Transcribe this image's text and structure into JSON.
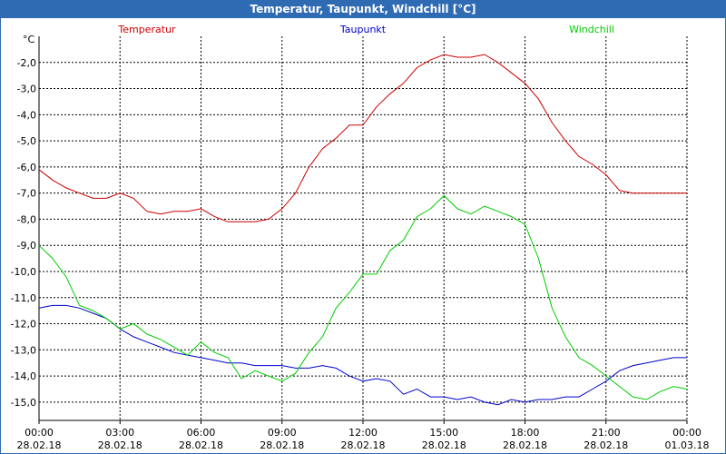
{
  "window": {
    "title": "Temperatur, Taupunkt, Windchill [°C]"
  },
  "chart_data": {
    "type": "line",
    "title": "Temperatur, Taupunkt, Windchill [°C]",
    "ylabel": "°C",
    "ylim": [
      -15.7,
      -1.0
    ],
    "yticks": [
      -2,
      -3,
      -4,
      -5,
      -6,
      -7,
      -8,
      -9,
      -10,
      -11,
      -12,
      -13,
      -14,
      -15
    ],
    "ytick_labels": [
      "-2,0",
      "-3,0",
      "-4,0",
      "-5,0",
      "-6,0",
      "-7,0",
      "-8,0",
      "-9,0",
      "-10,0",
      "-11,0",
      "-12,0",
      "-13,0",
      "-14,0",
      "-15,0"
    ],
    "xlim": [
      0,
      24
    ],
    "xticks": [
      {
        "h": 0,
        "time": "00:00",
        "date": "28.02.18"
      },
      {
        "h": 3,
        "time": "03:00",
        "date": "28.02.18"
      },
      {
        "h": 6,
        "time": "06:00",
        "date": "28.02.18"
      },
      {
        "h": 9,
        "time": "09:00",
        "date": "28.02.18"
      },
      {
        "h": 12,
        "time": "12:00",
        "date": "28.02.18"
      },
      {
        "h": 15,
        "time": "15:00",
        "date": "28.02.18"
      },
      {
        "h": 18,
        "time": "18:00",
        "date": "28.02.18"
      },
      {
        "h": 21,
        "time": "21:00",
        "date": "28.02.18"
      },
      {
        "h": 24,
        "time": "00:00",
        "date": "01.03.18"
      }
    ],
    "grid": true,
    "series": [
      {
        "name": "Temperatur",
        "color": "#cc0000",
        "x": [
          0,
          0.5,
          1,
          1.5,
          2,
          2.5,
          3,
          3.5,
          4,
          4.5,
          5,
          5.5,
          6,
          6.5,
          7,
          7.5,
          8,
          8.5,
          9,
          9.5,
          10,
          10.5,
          11,
          11.5,
          12,
          12.5,
          13,
          13.5,
          14,
          14.5,
          15,
          15.5,
          16,
          16.5,
          17,
          17.5,
          18,
          18.5,
          19,
          19.5,
          20,
          20.5,
          21,
          21.5,
          22,
          22.5,
          23,
          23.5,
          24
        ],
        "y": [
          -6.1,
          -6.5,
          -6.8,
          -7.0,
          -7.2,
          -7.2,
          -7.0,
          -7.2,
          -7.7,
          -7.8,
          -7.7,
          -7.7,
          -7.6,
          -7.9,
          -8.1,
          -8.1,
          -8.1,
          -8.0,
          -7.6,
          -7.0,
          -6.0,
          -5.3,
          -4.9,
          -4.4,
          -4.4,
          -3.7,
          -3.2,
          -2.8,
          -2.2,
          -1.9,
          -1.7,
          -1.8,
          -1.8,
          -1.7,
          -2.0,
          -2.4,
          -2.8,
          -3.4,
          -4.3,
          -5.0,
          -5.6,
          -5.9,
          -6.3,
          -6.9,
          -7.0,
          -7.0,
          -7.0,
          -7.0,
          -7.0
        ]
      },
      {
        "name": "Taupunkt",
        "color": "#0000cc",
        "x": [
          0,
          0.5,
          1,
          1.5,
          2,
          2.5,
          3,
          3.5,
          4,
          4.5,
          5,
          5.5,
          6,
          6.5,
          7,
          7.5,
          8,
          8.5,
          9,
          9.5,
          10,
          10.5,
          11,
          11.5,
          12,
          12.5,
          13,
          13.5,
          14,
          14.5,
          15,
          15.5,
          16,
          16.5,
          17,
          17.5,
          18,
          18.5,
          19,
          19.5,
          20,
          20.5,
          21,
          21.5,
          22,
          22.5,
          23,
          23.5,
          24
        ],
        "y": [
          -11.4,
          -11.3,
          -11.3,
          -11.4,
          -11.6,
          -11.8,
          -12.2,
          -12.5,
          -12.7,
          -12.9,
          -13.1,
          -13.2,
          -13.3,
          -13.4,
          -13.5,
          -13.5,
          -13.6,
          -13.6,
          -13.6,
          -13.7,
          -13.7,
          -13.6,
          -13.7,
          -14.0,
          -14.2,
          -14.1,
          -14.2,
          -14.7,
          -14.5,
          -14.8,
          -14.8,
          -14.9,
          -14.8,
          -15.0,
          -15.1,
          -14.9,
          -15.0,
          -14.9,
          -14.9,
          -14.8,
          -14.8,
          -14.5,
          -14.2,
          -13.8,
          -13.6,
          -13.5,
          -13.4,
          -13.3,
          -13.3
        ]
      },
      {
        "name": "Windchill",
        "color": "#00cc00",
        "x": [
          0,
          0.5,
          1,
          1.5,
          2,
          2.5,
          3,
          3.5,
          4,
          4.5,
          5,
          5.5,
          6,
          6.5,
          7,
          7.5,
          8,
          8.5,
          9,
          9.5,
          10,
          10.5,
          11,
          11.5,
          12,
          12.5,
          13,
          13.5,
          14,
          14.5,
          15,
          15.5,
          16,
          16.5,
          17,
          17.5,
          18,
          18.5,
          19,
          19.5,
          20,
          20.5,
          21,
          21.5,
          22,
          22.5,
          23,
          23.5,
          24
        ],
        "y": [
          -9.0,
          -9.5,
          -10.2,
          -11.3,
          -11.5,
          -11.8,
          -12.2,
          -12.0,
          -12.4,
          -12.6,
          -12.9,
          -13.2,
          -12.7,
          -13.1,
          -13.3,
          -14.1,
          -13.8,
          -14.0,
          -14.2,
          -13.9,
          -13.1,
          -12.5,
          -11.4,
          -10.8,
          -10.1,
          -10.1,
          -9.2,
          -8.8,
          -7.9,
          -7.6,
          -7.1,
          -7.6,
          -7.8,
          -7.5,
          -7.7,
          -7.9,
          -8.2,
          -9.5,
          -11.4,
          -12.5,
          -13.3,
          -13.6,
          -14.0,
          -14.4,
          -14.8,
          -14.9,
          -14.6,
          -14.4,
          -14.5
        ]
      }
    ]
  }
}
